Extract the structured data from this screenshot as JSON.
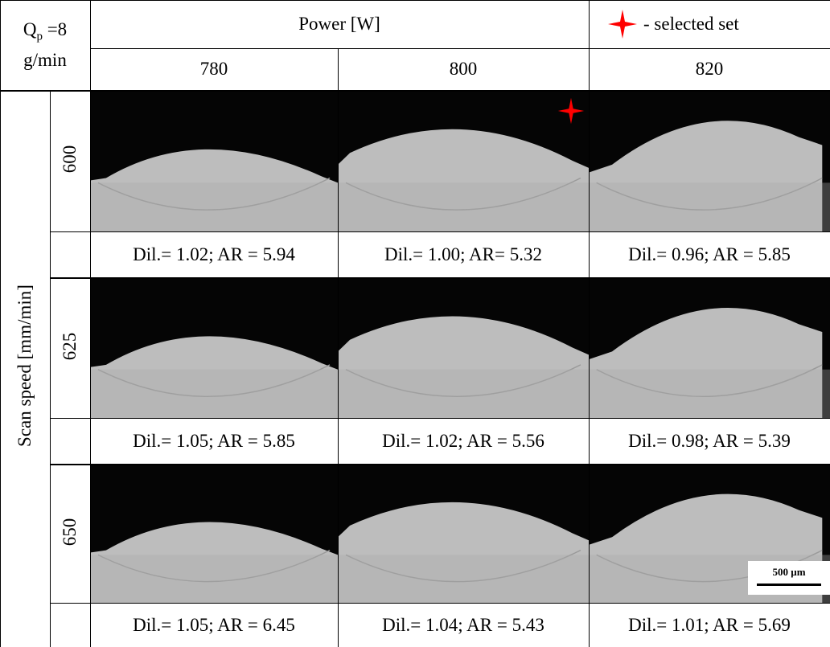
{
  "corner": {
    "symbol": "Q",
    "subscript": "p",
    "value": " =8",
    "unit": "g/min"
  },
  "column_group": "Power [W]",
  "legend": {
    "label": "- selected set"
  },
  "row_group": "Scan speed [mm/min]",
  "columns": [
    "780",
    "800",
    "820"
  ],
  "rows": [
    {
      "label": "600",
      "cells": [
        {
          "caption": "Dil.= 1.02; AR = 5.94"
        },
        {
          "caption": "Dil.= 1.00; AR= 5.32",
          "selected": true
        },
        {
          "caption": "Dil.= 0.96; AR = 5.85"
        }
      ]
    },
    {
      "label": "625",
      "cells": [
        {
          "caption": "Dil.= 1.05; AR = 5.85"
        },
        {
          "caption": "Dil.= 1.02; AR = 5.56"
        },
        {
          "caption": "Dil.= 0.98; AR = 5.39"
        }
      ]
    },
    {
      "label": "650",
      "cells": [
        {
          "caption": "Dil.= 1.05; AR = 6.45"
        },
        {
          "caption": "Dil.= 1.04; AR = 5.43"
        },
        {
          "caption": "Dil.= 1.01; AR = 5.69"
        }
      ]
    }
  ],
  "scale_bar": "500 µm"
}
